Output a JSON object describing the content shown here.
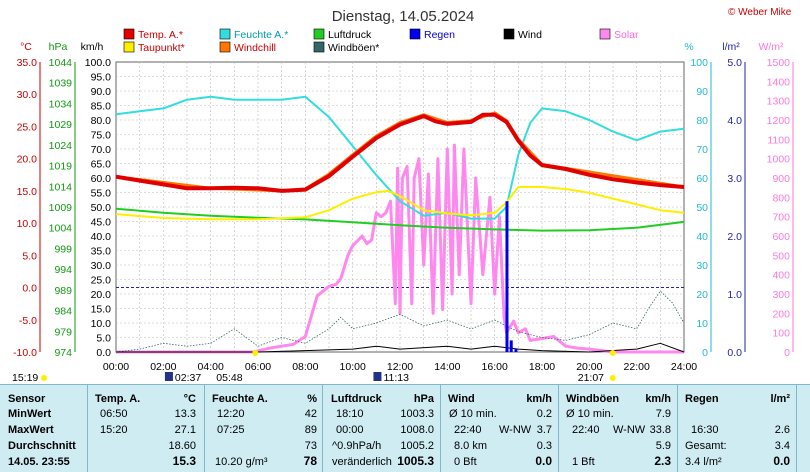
{
  "title": "Dienstag, 14.05.2024",
  "copyright": "© Weber Mike",
  "legend": [
    {
      "label": "Temp. A.*",
      "color": "#e00000"
    },
    {
      "label": "Feuchte A.*",
      "color": "#33dddd"
    },
    {
      "label": "Luftdruck",
      "color": "#22cc22"
    },
    {
      "label": "Regen",
      "color": "#0000ee",
      "text_color": "#0000cc"
    },
    {
      "label": "Wind",
      "color": "#000000"
    },
    {
      "label": "Solar",
      "color": "#ff88ee",
      "text_color": "#ff66dd"
    },
    {
      "label": "Taupunkt*",
      "color": "#ffee00"
    },
    {
      "label": "Windchill",
      "color": "#ff7700"
    },
    {
      "label": "Windböen*",
      "color": "#336666"
    }
  ],
  "axis_units": {
    "celsius": "°C",
    "hpa": "hPa",
    "kmh": "km/h",
    "percent": "%",
    "rain": "l/m²",
    "solar": "W/m²"
  },
  "axes": {
    "celsius": [
      "35.0",
      "30.0",
      "25.0",
      "20.0",
      "15.0",
      "10.0",
      "5.0",
      "0.0",
      "-5.0",
      "-10.0"
    ],
    "hpa": [
      "1044",
      "1039",
      "1034",
      "1029",
      "1024",
      "1019",
      "1014",
      "1009",
      "1004",
      "999",
      "994",
      "989",
      "984",
      "979",
      "974"
    ],
    "kmh": [
      "100.0",
      "95.0",
      "90.0",
      "85.0",
      "80.0",
      "75.0",
      "70.0",
      "65.0",
      "60.0",
      "55.0",
      "50.0",
      "45.0",
      "40.0",
      "35.0",
      "30.0",
      "25.0",
      "20.0",
      "15.0",
      "10.0",
      "5.0",
      "0.0"
    ],
    "percent": [
      "100",
      "90",
      "80",
      "70",
      "60",
      "50",
      "40",
      "30",
      "20",
      "10",
      "0"
    ],
    "rain": [
      "5.0",
      "4.0",
      "3.0",
      "2.0",
      "1.0",
      "0.0"
    ],
    "solar": [
      "1500",
      "1400",
      "1300",
      "1200",
      "1100",
      "1000",
      "900",
      "800",
      "700",
      "600",
      "500",
      "400",
      "300",
      "200",
      "100",
      "0"
    ],
    "hours": [
      "00:00",
      "02:00",
      "04:00",
      "06:00",
      "08:00",
      "10:00",
      "12:00",
      "14:00",
      "16:00",
      "18:00",
      "20:00",
      "22:00",
      "24:00"
    ]
  },
  "events": {
    "sunrise": "05:48",
    "sunset": "21:07",
    "moonrise": "02:37",
    "moonset": "11:13",
    "left_time": "15:19"
  },
  "chart_data": {
    "type": "line",
    "title": "Dienstag, 14.05.2024",
    "x_unit": "hour",
    "xlim": [
      0,
      24
    ],
    "series": [
      {
        "name": "Temp. A.*",
        "unit": "°C",
        "ylim": [
          -10,
          35
        ],
        "points": [
          [
            0,
            17.2
          ],
          [
            1,
            16.6
          ],
          [
            2,
            16.0
          ],
          [
            3,
            15.4
          ],
          [
            4,
            15.4
          ],
          [
            5,
            15.5
          ],
          [
            6,
            15.4
          ],
          [
            7,
            15.0
          ],
          [
            8,
            15.2
          ],
          [
            9,
            17.3
          ],
          [
            10,
            20.3
          ],
          [
            11,
            23.2
          ],
          [
            12,
            25.3
          ],
          [
            13,
            26.6
          ],
          [
            13.5,
            25.8
          ],
          [
            14,
            25.4
          ],
          [
            15,
            25.7
          ],
          [
            15.5,
            26.8
          ],
          [
            16,
            26.8
          ],
          [
            16.5,
            25.7
          ],
          [
            17,
            22.8
          ],
          [
            17.5,
            20.5
          ],
          [
            18,
            19.0
          ],
          [
            19,
            18.4
          ],
          [
            20,
            17.5
          ],
          [
            21,
            16.8
          ],
          [
            22,
            16.3
          ],
          [
            23,
            15.9
          ],
          [
            24,
            15.6
          ]
        ]
      },
      {
        "name": "Windchill",
        "unit": "°C",
        "ylim": [
          -10,
          35
        ],
        "points": [
          [
            0,
            17.2
          ],
          [
            4,
            15.4
          ],
          [
            7,
            15.0
          ],
          [
            8,
            15.3
          ],
          [
            9,
            17.6
          ],
          [
            10,
            20.6
          ],
          [
            11,
            23.5
          ],
          [
            12,
            25.6
          ],
          [
            13,
            26.8
          ],
          [
            14,
            25.6
          ],
          [
            15,
            25.9
          ],
          [
            16,
            27.1
          ],
          [
            16.5,
            25.9
          ],
          [
            17,
            23.0
          ],
          [
            18,
            19.1
          ],
          [
            24,
            15.6
          ]
        ]
      },
      {
        "name": "Taupunkt*",
        "unit": "°C",
        "ylim": [
          -10,
          35
        ],
        "points": [
          [
            0,
            11.4
          ],
          [
            2,
            10.8
          ],
          [
            4,
            10.6
          ],
          [
            6,
            10.6
          ],
          [
            8,
            10.9
          ],
          [
            9,
            12.0
          ],
          [
            10,
            13.8
          ],
          [
            11,
            14.8
          ],
          [
            11.5,
            15.0
          ],
          [
            12,
            14.2
          ],
          [
            13,
            12.0
          ],
          [
            14,
            11.5
          ],
          [
            15,
            11.2
          ],
          [
            16,
            11.6
          ],
          [
            16.5,
            13.2
          ],
          [
            17,
            15.6
          ],
          [
            18,
            15.6
          ],
          [
            19,
            15.3
          ],
          [
            20,
            14.7
          ],
          [
            21,
            13.8
          ],
          [
            22,
            12.9
          ],
          [
            23,
            12.0
          ],
          [
            24,
            11.6
          ]
        ]
      },
      {
        "name": "Feuchte A.*",
        "unit": "%",
        "ylim": [
          0,
          100
        ],
        "points": [
          [
            0,
            82
          ],
          [
            1,
            83
          ],
          [
            2,
            84
          ],
          [
            3,
            87
          ],
          [
            4,
            88
          ],
          [
            5,
            87
          ],
          [
            7,
            87
          ],
          [
            8,
            88
          ],
          [
            9,
            81
          ],
          [
            10,
            71
          ],
          [
            11,
            61
          ],
          [
            12,
            52
          ],
          [
            13,
            47
          ],
          [
            14,
            48
          ],
          [
            15,
            46
          ],
          [
            16,
            46
          ],
          [
            16.5,
            50
          ],
          [
            17,
            68
          ],
          [
            17.5,
            79
          ],
          [
            18,
            84
          ],
          [
            19,
            83
          ],
          [
            20,
            80
          ],
          [
            21,
            76
          ],
          [
            22,
            73
          ],
          [
            23,
            76
          ],
          [
            24,
            77
          ]
        ]
      },
      {
        "name": "Luftdruck",
        "unit": "hPa",
        "ylim": [
          974,
          1044
        ],
        "points": [
          [
            0,
            1008.6
          ],
          [
            2,
            1007.6
          ],
          [
            4,
            1006.9
          ],
          [
            6,
            1006.4
          ],
          [
            8,
            1006.0
          ],
          [
            10,
            1005.3
          ],
          [
            12,
            1004.6
          ],
          [
            14,
            1004.0
          ],
          [
            16,
            1003.6
          ],
          [
            18,
            1003.3
          ],
          [
            20,
            1003.4
          ],
          [
            22,
            1004.0
          ],
          [
            24,
            1005.4
          ]
        ]
      },
      {
        "name": "Solar",
        "unit": "W/m²",
        "ylim": [
          0,
          1500
        ],
        "points": [
          [
            0,
            0
          ],
          [
            5.8,
            0
          ],
          [
            6.5,
            20
          ],
          [
            7,
            30
          ],
          [
            7.5,
            40
          ],
          [
            8,
            80
          ],
          [
            8.5,
            290
          ],
          [
            9,
            340
          ],
          [
            9.3,
            350
          ],
          [
            9.5,
            380
          ],
          [
            9.8,
            500
          ],
          [
            10,
            550
          ],
          [
            10.4,
            600
          ],
          [
            10.6,
            560
          ],
          [
            10.8,
            580
          ],
          [
            11,
            720
          ],
          [
            11.2,
            700
          ],
          [
            11.4,
            720
          ],
          [
            11.6,
            780
          ],
          [
            11.8,
            250
          ],
          [
            11.9,
            950
          ],
          [
            12.0,
            200
          ],
          [
            12.1,
            900
          ],
          [
            12.3,
            960
          ],
          [
            12.5,
            250
          ],
          [
            12.6,
            900
          ],
          [
            12.8,
            1000
          ],
          [
            13.0,
            450
          ],
          [
            13.2,
            920
          ],
          [
            13.4,
            200
          ],
          [
            13.6,
            1000
          ],
          [
            13.8,
            220
          ],
          [
            14.0,
            1050
          ],
          [
            14.2,
            300
          ],
          [
            14.3,
            1070
          ],
          [
            14.5,
            400
          ],
          [
            14.7,
            1050
          ],
          [
            15.0,
            250
          ],
          [
            15.2,
            900
          ],
          [
            15.5,
            400
          ],
          [
            15.8,
            800
          ],
          [
            16.0,
            300
          ],
          [
            16.2,
            700
          ],
          [
            16.4,
            180
          ],
          [
            16.5,
            100
          ],
          [
            16.8,
            160
          ],
          [
            17,
            100
          ],
          [
            17.3,
            120
          ],
          [
            17.5,
            60
          ],
          [
            18,
            70
          ],
          [
            18.5,
            80
          ],
          [
            19,
            30
          ],
          [
            19.5,
            20
          ],
          [
            20,
            15
          ],
          [
            21,
            0
          ],
          [
            24,
            0
          ]
        ]
      },
      {
        "name": "Wind",
        "unit": "km/h",
        "ylim": [
          0,
          100
        ],
        "points": [
          [
            0,
            0
          ],
          [
            6,
            0
          ],
          [
            8,
            0.5
          ],
          [
            10,
            1
          ],
          [
            11,
            2
          ],
          [
            12,
            1
          ],
          [
            14,
            2
          ],
          [
            15,
            1
          ],
          [
            16,
            2
          ],
          [
            17,
            1
          ],
          [
            18,
            0.5
          ],
          [
            20,
            0
          ],
          [
            22,
            1
          ],
          [
            23,
            3
          ],
          [
            24,
            0
          ]
        ]
      },
      {
        "name": "Windböen*",
        "unit": "km/h",
        "ylim": [
          0,
          100
        ],
        "points": [
          [
            0,
            0
          ],
          [
            1,
            1
          ],
          [
            2,
            3
          ],
          [
            3,
            2
          ],
          [
            4,
            3
          ],
          [
            5,
            8
          ],
          [
            6,
            2
          ],
          [
            7,
            5
          ],
          [
            8,
            3
          ],
          [
            9,
            8
          ],
          [
            9.5,
            12
          ],
          [
            10,
            8
          ],
          [
            11,
            10
          ],
          [
            12,
            13
          ],
          [
            13,
            9
          ],
          [
            14,
            11
          ],
          [
            15,
            8
          ],
          [
            16,
            11
          ],
          [
            17,
            7
          ],
          [
            18,
            5
          ],
          [
            19,
            4
          ],
          [
            20,
            6
          ],
          [
            21,
            10
          ],
          [
            22,
            8
          ],
          [
            22.5,
            15
          ],
          [
            23,
            21
          ],
          [
            23.5,
            17
          ],
          [
            24,
            10
          ]
        ]
      },
      {
        "name": "Regen",
        "unit": "l/m²",
        "ylim": [
          0,
          5
        ],
        "points": [
          [
            16.52,
            2.6
          ],
          [
            16.7,
            0.2
          ],
          [
            16.9,
            0.05
          ],
          [
            17.2,
            0
          ]
        ]
      }
    ]
  },
  "table": {
    "col1": {
      "header": "Sensor",
      "rows": [
        "MinWert",
        "MaxWert",
        "Durchschnitt",
        "14.05. 23:55"
      ]
    },
    "temp": {
      "header": "Temp. A.",
      "unit": "°C",
      "min_time": "06:50",
      "min": "13.3",
      "max_time": "15:20",
      "max": "27.1",
      "avg": "18.60",
      "cur": "15.3"
    },
    "hum": {
      "header": "Feuchte A.",
      "unit": "%",
      "min_time": "12:20",
      "min": "42",
      "max_time": "07:25",
      "max": "89",
      "avg": "73",
      "abs": "10.20 g/m³",
      "cur": "78"
    },
    "press": {
      "header": "Luftdruck",
      "unit": "hPa",
      "min_time": "18:10",
      "min": "1003.3",
      "max_time": "00:00",
      "max": "1008.0",
      "trend_label": "^0.9hPa/h",
      "avg": "1005.2",
      "state": "veränderlich",
      "cur": "1005.3"
    },
    "wind": {
      "header": "Wind",
      "unit": "km/h",
      "r1l": "Ø 10 min.",
      "r1v": "0.2",
      "r2t": "22:40",
      "r2d": "W-NW",
      "r2v": "3.7",
      "r3l": "8.0 km",
      "r3v": "0.3",
      "r4l": "0 Bft",
      "r4v": "0.0"
    },
    "gust": {
      "header": "Windböen",
      "unit": "km/h",
      "r1l": "Ø 10 min.",
      "r1v": "7.9",
      "r2t": "22:40",
      "r2d": "W-NW",
      "r2v": "33.8",
      "r3v": "5.9",
      "r4l": "1 Bft",
      "r4v": "2.3"
    },
    "rain": {
      "header": "Regen",
      "unit": "l/m²",
      "r2t": "16:30",
      "r2v": "2.6",
      "r3l": "Gesamt:",
      "r3v": "3.4",
      "r4l": "3.4 l/m²",
      "r4v": "0.0"
    }
  }
}
